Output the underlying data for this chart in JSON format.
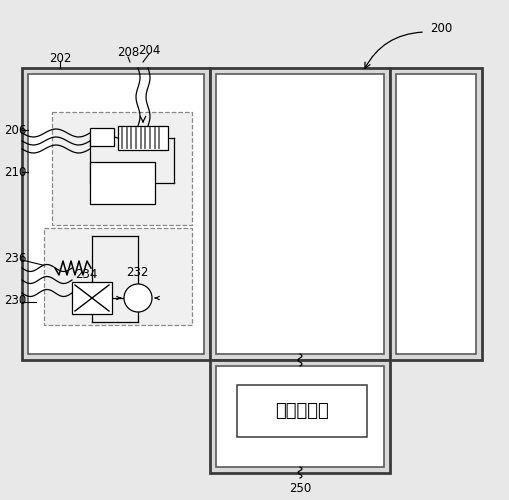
{
  "bg_color": "#e8e8e8",
  "white": "#ffffff",
  "black": "#000000",
  "panel_ec": "#444444",
  "inner_ec": "#555555",
  "dashed_ec": "#888888",
  "label_200": "200",
  "label_202": "202",
  "label_204": "204",
  "label_206": "206",
  "label_208": "208",
  "label_210": "210",
  "label_230": "230",
  "label_232": "232",
  "label_234": "234",
  "label_236": "236",
  "label_250": "250",
  "text_main": "主制冷系统",
  "fontsize_label": 8.5
}
